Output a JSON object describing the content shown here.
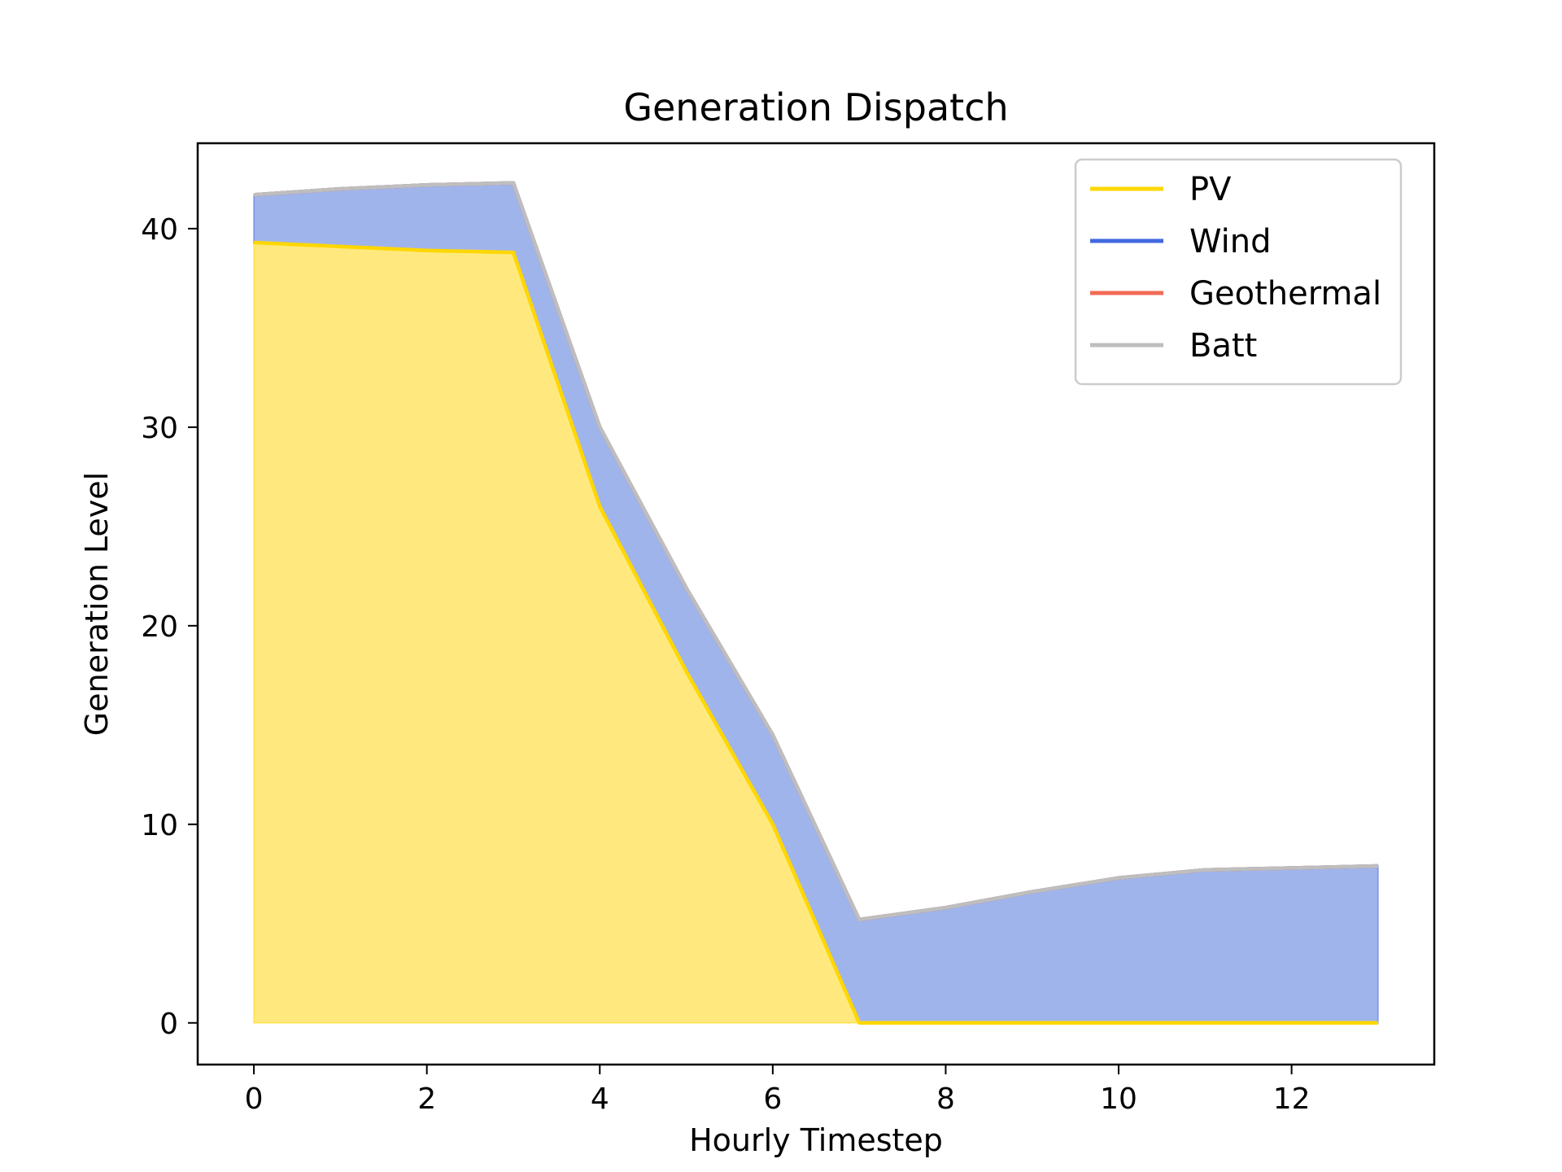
{
  "chart_data": {
    "type": "area",
    "stacked": true,
    "title": "Generation Dispatch",
    "xlabel": "Hourly Timestep",
    "ylabel": "Generation Level",
    "x": [
      0,
      1,
      2,
      3,
      4,
      5,
      6,
      7,
      8,
      9,
      10,
      11,
      12,
      13
    ],
    "xlim": [
      -0.65,
      13.65
    ],
    "ylim": [
      -2.1,
      44.3
    ],
    "xticks": [
      0,
      2,
      4,
      6,
      8,
      10,
      12
    ],
    "yticks": [
      0,
      10,
      20,
      30,
      40
    ],
    "grid": false,
    "legend_position": "top-right",
    "series": [
      {
        "name": "PV",
        "color": "#FFD700",
        "fill": "#FFE97F",
        "values": [
          39.3,
          39.1,
          38.9,
          38.8,
          26.0,
          17.7,
          10.0,
          0.0,
          0.0,
          0.0,
          0.0,
          0.0,
          0.0,
          0.0
        ]
      },
      {
        "name": "Wind",
        "color": "#4169E1",
        "fill": "#A0B4EC",
        "values": [
          2.4,
          2.9,
          3.3,
          3.5,
          4.0,
          4.2,
          4.5,
          5.2,
          5.8,
          6.6,
          7.3,
          7.7,
          7.8,
          7.9
        ]
      },
      {
        "name": "Geothermal",
        "color": "#F26B56",
        "fill": "#F8A99D",
        "values": [
          0,
          0,
          0,
          0,
          0,
          0,
          0,
          0,
          0,
          0,
          0,
          0,
          0,
          0
        ]
      },
      {
        "name": "Batt",
        "color": "#BEBEBE",
        "fill": "#D9D9D9",
        "values": [
          0,
          0,
          0,
          0,
          0,
          0,
          0,
          0,
          0,
          0,
          0,
          0,
          0,
          0
        ]
      }
    ]
  }
}
